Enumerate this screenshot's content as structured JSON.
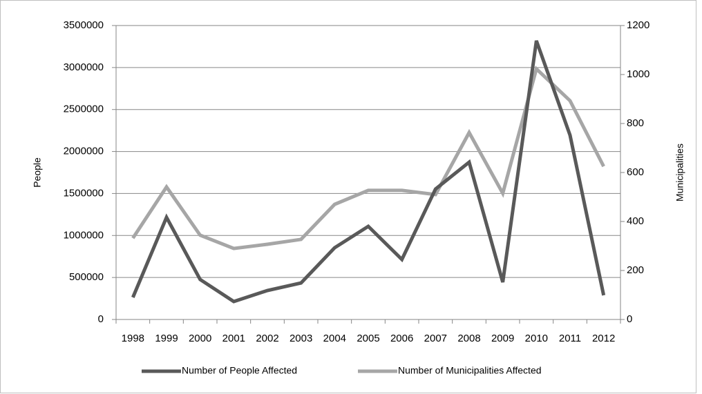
{
  "chart_data": {
    "type": "line",
    "ylabel": "People",
    "y2label": "Municipalities",
    "categories": [
      "1998",
      "1999",
      "2000",
      "2001",
      "2002",
      "2003",
      "2004",
      "2005",
      "2006",
      "2007",
      "2008",
      "2009",
      "2010",
      "2011",
      "2012"
    ],
    "series": [
      {
        "name": "Number of People Affected",
        "color": "#595959",
        "values": [
          263000,
          1216000,
          476000,
          214000,
          345000,
          435000,
          854000,
          1109000,
          715000,
          1553000,
          1873000,
          444000,
          3319000,
          2194000,
          288000
        ]
      },
      {
        "name": "Number of Municipalities Affected",
        "color": "#a6a6a6",
        "axis": "y2",
        "values": [
          332,
          541,
          344,
          290,
          307,
          327,
          470,
          527,
          527,
          510,
          763,
          515,
          1023,
          893,
          625
        ]
      }
    ],
    "ylim": [
      0,
      3500000
    ],
    "yticks": [
      0,
      500000,
      1000000,
      1500000,
      2000000,
      2500000,
      3000000,
      3500000
    ],
    "y2lim": [
      0,
      1200
    ],
    "y2ticks": [
      0,
      200,
      400,
      600,
      800,
      1000,
      1200
    ],
    "grid": true,
    "legend": "bottom"
  }
}
